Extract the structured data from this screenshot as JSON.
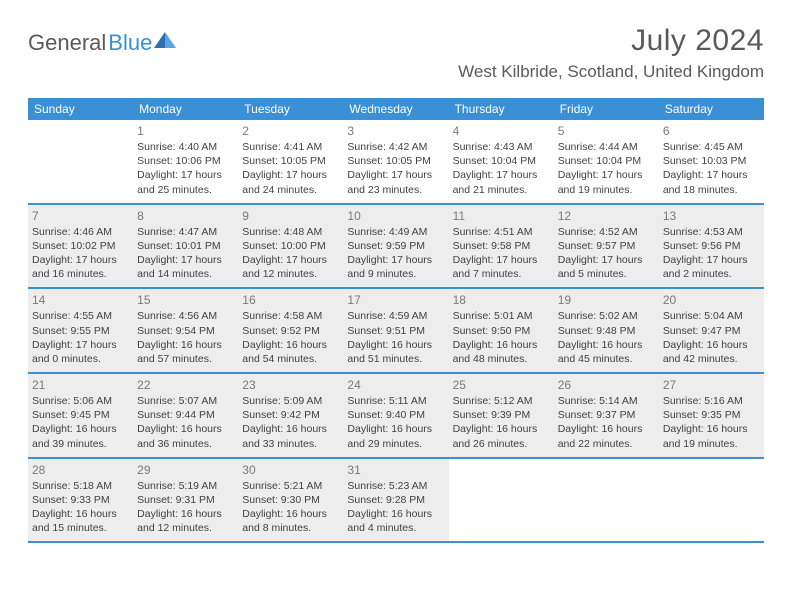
{
  "logo": {
    "text1": "General",
    "text2": "Blue"
  },
  "title": "July 2024",
  "location": "West Kilbride, Scotland, United Kingdom",
  "weekdays": [
    "Sunday",
    "Monday",
    "Tuesday",
    "Wednesday",
    "Thursday",
    "Friday",
    "Saturday"
  ],
  "colors": {
    "header_bg": "#3b8fd4",
    "shaded_bg": "#ededed",
    "text": "#424242",
    "muted": "#7a7a7a"
  },
  "weeks": [
    [
      {
        "day": "",
        "sunrise": "",
        "sunset": "",
        "daylight1": "",
        "daylight2": "",
        "shaded": false,
        "empty": true
      },
      {
        "day": "1",
        "sunrise": "Sunrise: 4:40 AM",
        "sunset": "Sunset: 10:06 PM",
        "daylight1": "Daylight: 17 hours",
        "daylight2": "and 25 minutes.",
        "shaded": false
      },
      {
        "day": "2",
        "sunrise": "Sunrise: 4:41 AM",
        "sunset": "Sunset: 10:05 PM",
        "daylight1": "Daylight: 17 hours",
        "daylight2": "and 24 minutes.",
        "shaded": false
      },
      {
        "day": "3",
        "sunrise": "Sunrise: 4:42 AM",
        "sunset": "Sunset: 10:05 PM",
        "daylight1": "Daylight: 17 hours",
        "daylight2": "and 23 minutes.",
        "shaded": false
      },
      {
        "day": "4",
        "sunrise": "Sunrise: 4:43 AM",
        "sunset": "Sunset: 10:04 PM",
        "daylight1": "Daylight: 17 hours",
        "daylight2": "and 21 minutes.",
        "shaded": false
      },
      {
        "day": "5",
        "sunrise": "Sunrise: 4:44 AM",
        "sunset": "Sunset: 10:04 PM",
        "daylight1": "Daylight: 17 hours",
        "daylight2": "and 19 minutes.",
        "shaded": false
      },
      {
        "day": "6",
        "sunrise": "Sunrise: 4:45 AM",
        "sunset": "Sunset: 10:03 PM",
        "daylight1": "Daylight: 17 hours",
        "daylight2": "and 18 minutes.",
        "shaded": false
      }
    ],
    [
      {
        "day": "7",
        "sunrise": "Sunrise: 4:46 AM",
        "sunset": "Sunset: 10:02 PM",
        "daylight1": "Daylight: 17 hours",
        "daylight2": "and 16 minutes.",
        "shaded": true
      },
      {
        "day": "8",
        "sunrise": "Sunrise: 4:47 AM",
        "sunset": "Sunset: 10:01 PM",
        "daylight1": "Daylight: 17 hours",
        "daylight2": "and 14 minutes.",
        "shaded": true
      },
      {
        "day": "9",
        "sunrise": "Sunrise: 4:48 AM",
        "sunset": "Sunset: 10:00 PM",
        "daylight1": "Daylight: 17 hours",
        "daylight2": "and 12 minutes.",
        "shaded": true
      },
      {
        "day": "10",
        "sunrise": "Sunrise: 4:49 AM",
        "sunset": "Sunset: 9:59 PM",
        "daylight1": "Daylight: 17 hours",
        "daylight2": "and 9 minutes.",
        "shaded": true
      },
      {
        "day": "11",
        "sunrise": "Sunrise: 4:51 AM",
        "sunset": "Sunset: 9:58 PM",
        "daylight1": "Daylight: 17 hours",
        "daylight2": "and 7 minutes.",
        "shaded": true
      },
      {
        "day": "12",
        "sunrise": "Sunrise: 4:52 AM",
        "sunset": "Sunset: 9:57 PM",
        "daylight1": "Daylight: 17 hours",
        "daylight2": "and 5 minutes.",
        "shaded": true
      },
      {
        "day": "13",
        "sunrise": "Sunrise: 4:53 AM",
        "sunset": "Sunset: 9:56 PM",
        "daylight1": "Daylight: 17 hours",
        "daylight2": "and 2 minutes.",
        "shaded": true
      }
    ],
    [
      {
        "day": "14",
        "sunrise": "Sunrise: 4:55 AM",
        "sunset": "Sunset: 9:55 PM",
        "daylight1": "Daylight: 17 hours",
        "daylight2": "and 0 minutes.",
        "shaded": true
      },
      {
        "day": "15",
        "sunrise": "Sunrise: 4:56 AM",
        "sunset": "Sunset: 9:54 PM",
        "daylight1": "Daylight: 16 hours",
        "daylight2": "and 57 minutes.",
        "shaded": true
      },
      {
        "day": "16",
        "sunrise": "Sunrise: 4:58 AM",
        "sunset": "Sunset: 9:52 PM",
        "daylight1": "Daylight: 16 hours",
        "daylight2": "and 54 minutes.",
        "shaded": true
      },
      {
        "day": "17",
        "sunrise": "Sunrise: 4:59 AM",
        "sunset": "Sunset: 9:51 PM",
        "daylight1": "Daylight: 16 hours",
        "daylight2": "and 51 minutes.",
        "shaded": true
      },
      {
        "day": "18",
        "sunrise": "Sunrise: 5:01 AM",
        "sunset": "Sunset: 9:50 PM",
        "daylight1": "Daylight: 16 hours",
        "daylight2": "and 48 minutes.",
        "shaded": true
      },
      {
        "day": "19",
        "sunrise": "Sunrise: 5:02 AM",
        "sunset": "Sunset: 9:48 PM",
        "daylight1": "Daylight: 16 hours",
        "daylight2": "and 45 minutes.",
        "shaded": true
      },
      {
        "day": "20",
        "sunrise": "Sunrise: 5:04 AM",
        "sunset": "Sunset: 9:47 PM",
        "daylight1": "Daylight: 16 hours",
        "daylight2": "and 42 minutes.",
        "shaded": true
      }
    ],
    [
      {
        "day": "21",
        "sunrise": "Sunrise: 5:06 AM",
        "sunset": "Sunset: 9:45 PM",
        "daylight1": "Daylight: 16 hours",
        "daylight2": "and 39 minutes.",
        "shaded": true
      },
      {
        "day": "22",
        "sunrise": "Sunrise: 5:07 AM",
        "sunset": "Sunset: 9:44 PM",
        "daylight1": "Daylight: 16 hours",
        "daylight2": "and 36 minutes.",
        "shaded": true
      },
      {
        "day": "23",
        "sunrise": "Sunrise: 5:09 AM",
        "sunset": "Sunset: 9:42 PM",
        "daylight1": "Daylight: 16 hours",
        "daylight2": "and 33 minutes.",
        "shaded": true
      },
      {
        "day": "24",
        "sunrise": "Sunrise: 5:11 AM",
        "sunset": "Sunset: 9:40 PM",
        "daylight1": "Daylight: 16 hours",
        "daylight2": "and 29 minutes.",
        "shaded": true
      },
      {
        "day": "25",
        "sunrise": "Sunrise: 5:12 AM",
        "sunset": "Sunset: 9:39 PM",
        "daylight1": "Daylight: 16 hours",
        "daylight2": "and 26 minutes.",
        "shaded": true
      },
      {
        "day": "26",
        "sunrise": "Sunrise: 5:14 AM",
        "sunset": "Sunset: 9:37 PM",
        "daylight1": "Daylight: 16 hours",
        "daylight2": "and 22 minutes.",
        "shaded": true
      },
      {
        "day": "27",
        "sunrise": "Sunrise: 5:16 AM",
        "sunset": "Sunset: 9:35 PM",
        "daylight1": "Daylight: 16 hours",
        "daylight2": "and 19 minutes.",
        "shaded": true
      }
    ],
    [
      {
        "day": "28",
        "sunrise": "Sunrise: 5:18 AM",
        "sunset": "Sunset: 9:33 PM",
        "daylight1": "Daylight: 16 hours",
        "daylight2": "and 15 minutes.",
        "shaded": true
      },
      {
        "day": "29",
        "sunrise": "Sunrise: 5:19 AM",
        "sunset": "Sunset: 9:31 PM",
        "daylight1": "Daylight: 16 hours",
        "daylight2": "and 12 minutes.",
        "shaded": true
      },
      {
        "day": "30",
        "sunrise": "Sunrise: 5:21 AM",
        "sunset": "Sunset: 9:30 PM",
        "daylight1": "Daylight: 16 hours",
        "daylight2": "and 8 minutes.",
        "shaded": true
      },
      {
        "day": "31",
        "sunrise": "Sunrise: 5:23 AM",
        "sunset": "Sunset: 9:28 PM",
        "daylight1": "Daylight: 16 hours",
        "daylight2": "and 4 minutes.",
        "shaded": true
      },
      {
        "day": "",
        "sunrise": "",
        "sunset": "",
        "daylight1": "",
        "daylight2": "",
        "shaded": false,
        "empty": true
      },
      {
        "day": "",
        "sunrise": "",
        "sunset": "",
        "daylight1": "",
        "daylight2": "",
        "shaded": false,
        "empty": true
      },
      {
        "day": "",
        "sunrise": "",
        "sunset": "",
        "daylight1": "",
        "daylight2": "",
        "shaded": false,
        "empty": true
      }
    ]
  ]
}
